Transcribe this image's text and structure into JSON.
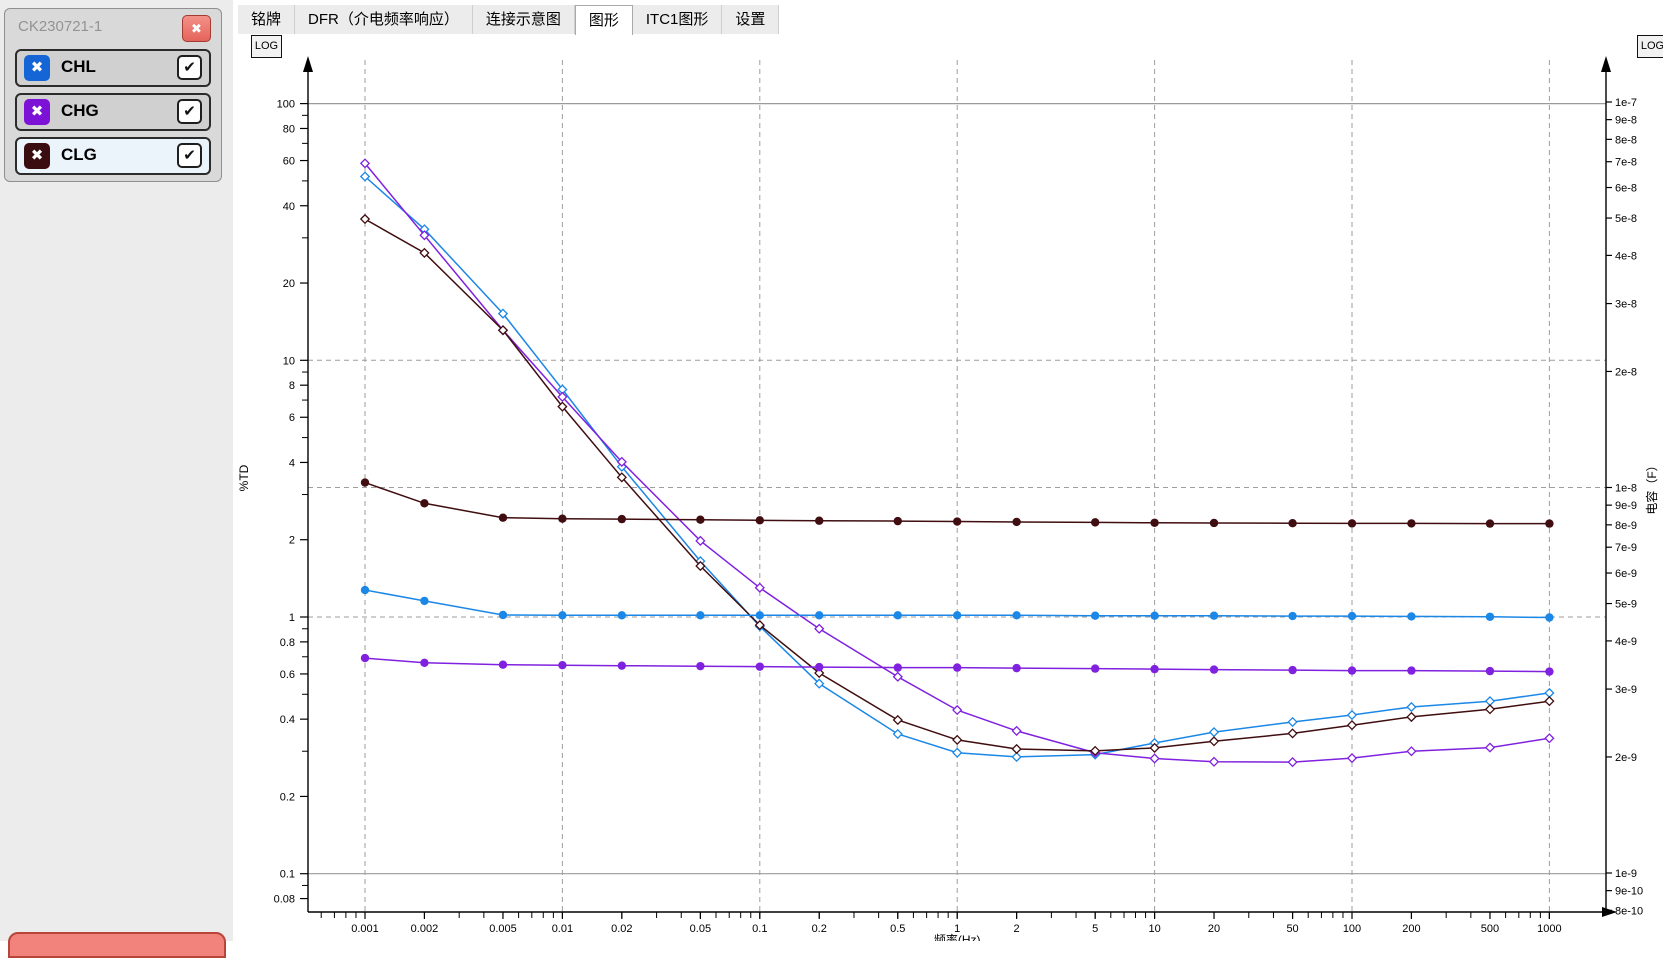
{
  "sidebar": {
    "title": "CK230721-1",
    "close_icon": "✖",
    "check_glyph": "✔",
    "channel_icon_glyph": "✖",
    "channels": [
      {
        "label": "CHL",
        "icon_color": "#1565d6",
        "checked": true,
        "selected": false
      },
      {
        "label": "CHG",
        "icon_color": "#7c12d6",
        "checked": true,
        "selected": false
      },
      {
        "label": "CLG",
        "icon_color": "#3a0d10",
        "checked": true,
        "selected": true
      }
    ]
  },
  "tabs": {
    "items": [
      "铭牌",
      "DFR（介电频率响应）",
      "连接示意图",
      "图形",
      "ITC1图形",
      "设置"
    ],
    "active_index": 3
  },
  "chart": {
    "log_button_left": "LOG",
    "log_button_right": "LOG",
    "y_left_title": "%TD",
    "y_right_title": "电容（F）",
    "x_title": "频率(Hz)",
    "grid_color": "#9e9e9e",
    "x_tick_labels": [
      "0.001",
      "0.002",
      "0.005",
      "0.01",
      "0.02",
      "0.05",
      "0.1",
      "0.2",
      "0.5",
      "1",
      "2",
      "5",
      "10",
      "20",
      "50",
      "100",
      "200",
      "500",
      "1000"
    ],
    "y_left_tick_labels": [
      "100",
      "80",
      "60",
      "40",
      "20",
      "10",
      "8",
      "6",
      "4",
      "2",
      "1",
      "0.8",
      "0.6",
      "0.4",
      "0.2",
      "0.1",
      "0.08"
    ],
    "y_left_minor_ticks": [
      90,
      70,
      50,
      30,
      9,
      7,
      5,
      3,
      0.9,
      0.7,
      0.5,
      0.3,
      0.09
    ],
    "y_right_tick_labels": [
      "1e-7",
      "9e-8",
      "8e-8",
      "7e-8",
      "6e-8",
      "5e-8",
      "4e-8",
      "3e-8",
      "2e-8",
      "1e-8",
      "9e-9",
      "8e-9",
      "7e-9",
      "6e-9",
      "5e-9",
      "4e-9",
      "3e-9",
      "2e-9",
      "1e-9",
      "9e-10",
      "8e-10"
    ],
    "gridlines": {
      "vertical_dashed": [
        0.001,
        0.01,
        0.1,
        1,
        10,
        100,
        1000
      ],
      "horizontal_solid_left": [
        100,
        0.1
      ],
      "horizontal_dashed_left": [
        10,
        1
      ],
      "horizontal_dashed_right": [
        1e-08
      ]
    }
  },
  "chart_data": {
    "type": "line",
    "x_axis": {
      "label": "频率(Hz)",
      "scale": "log",
      "range": [
        0.001,
        1000
      ]
    },
    "y_left_axis": {
      "label": "%TD",
      "scale": "log",
      "range": [
        0.08,
        100
      ]
    },
    "y_right_axis": {
      "label": "电容（F）",
      "scale": "log",
      "range": [
        8e-10,
        1e-07
      ]
    },
    "legend_position": "none",
    "grid": "dashed-decades",
    "x": [
      0.001,
      0.002,
      0.005,
      0.01,
      0.02,
      0.05,
      0.1,
      0.2,
      0.5,
      1,
      2,
      5,
      10,
      20,
      50,
      100,
      200,
      500,
      1000
    ],
    "series": [
      {
        "name": "CHL %TD",
        "axis": "left",
        "color": "#1b87e6",
        "marker": "open-diamond",
        "values": [
          52,
          32.4,
          15.2,
          7.7,
          3.85,
          1.65,
          0.92,
          0.55,
          0.35,
          0.296,
          0.285,
          0.291,
          0.323,
          0.356,
          0.39,
          0.415,
          0.446,
          0.47,
          0.506
        ]
      },
      {
        "name": "CHG %TD",
        "axis": "left",
        "color": "#8021df",
        "marker": "open-diamond",
        "values": [
          58.5,
          30.7,
          13.1,
          7.2,
          4.02,
          1.98,
          1.3,
          0.9,
          0.585,
          0.434,
          0.36,
          0.296,
          0.281,
          0.273,
          0.272,
          0.282,
          0.3,
          0.31,
          0.337
        ]
      },
      {
        "name": "CLG %TD",
        "axis": "left",
        "color": "#400d10",
        "marker": "open-diamond",
        "values": [
          35.5,
          26.2,
          13.1,
          6.6,
          3.5,
          1.58,
          0.93,
          0.605,
          0.397,
          0.332,
          0.306,
          0.301,
          0.309,
          0.328,
          0.352,
          0.379,
          0.408,
          0.437,
          0.47
        ]
      },
      {
        "name": "CHL 电容",
        "axis": "right",
        "color": "#1b87e6",
        "marker": "filled-dot",
        "values": [
          5.42e-09,
          5.08e-09,
          4.67e-09,
          4.66e-09,
          4.66e-09,
          4.66e-09,
          4.66e-09,
          4.66e-09,
          4.66e-09,
          4.66e-09,
          4.66e-09,
          4.65e-09,
          4.65e-09,
          4.65e-09,
          4.64e-09,
          4.64e-09,
          4.63e-09,
          4.62e-09,
          4.6e-09
        ]
      },
      {
        "name": "CHG 电容",
        "axis": "right",
        "color": "#8021df",
        "marker": "filled-dot",
        "values": [
          3.61e-09,
          3.51e-09,
          3.47e-09,
          3.46e-09,
          3.45e-09,
          3.44e-09,
          3.43e-09,
          3.42e-09,
          3.41e-09,
          3.41e-09,
          3.4e-09,
          3.39e-09,
          3.38e-09,
          3.37e-09,
          3.36e-09,
          3.35e-09,
          3.35e-09,
          3.34e-09,
          3.33e-09
        ]
      },
      {
        "name": "CLG 电容",
        "axis": "right",
        "color": "#400d10",
        "marker": "filled-dot",
        "values": [
          1.03e-08,
          9.1e-09,
          8.35e-09,
          8.3e-09,
          8.28e-09,
          8.25e-09,
          8.22e-09,
          8.2e-09,
          8.18e-09,
          8.16e-09,
          8.14e-09,
          8.12e-09,
          8.1e-09,
          8.09e-09,
          8.08e-09,
          8.07e-09,
          8.07e-09,
          8.06e-09,
          8.06e-09
        ]
      }
    ]
  }
}
